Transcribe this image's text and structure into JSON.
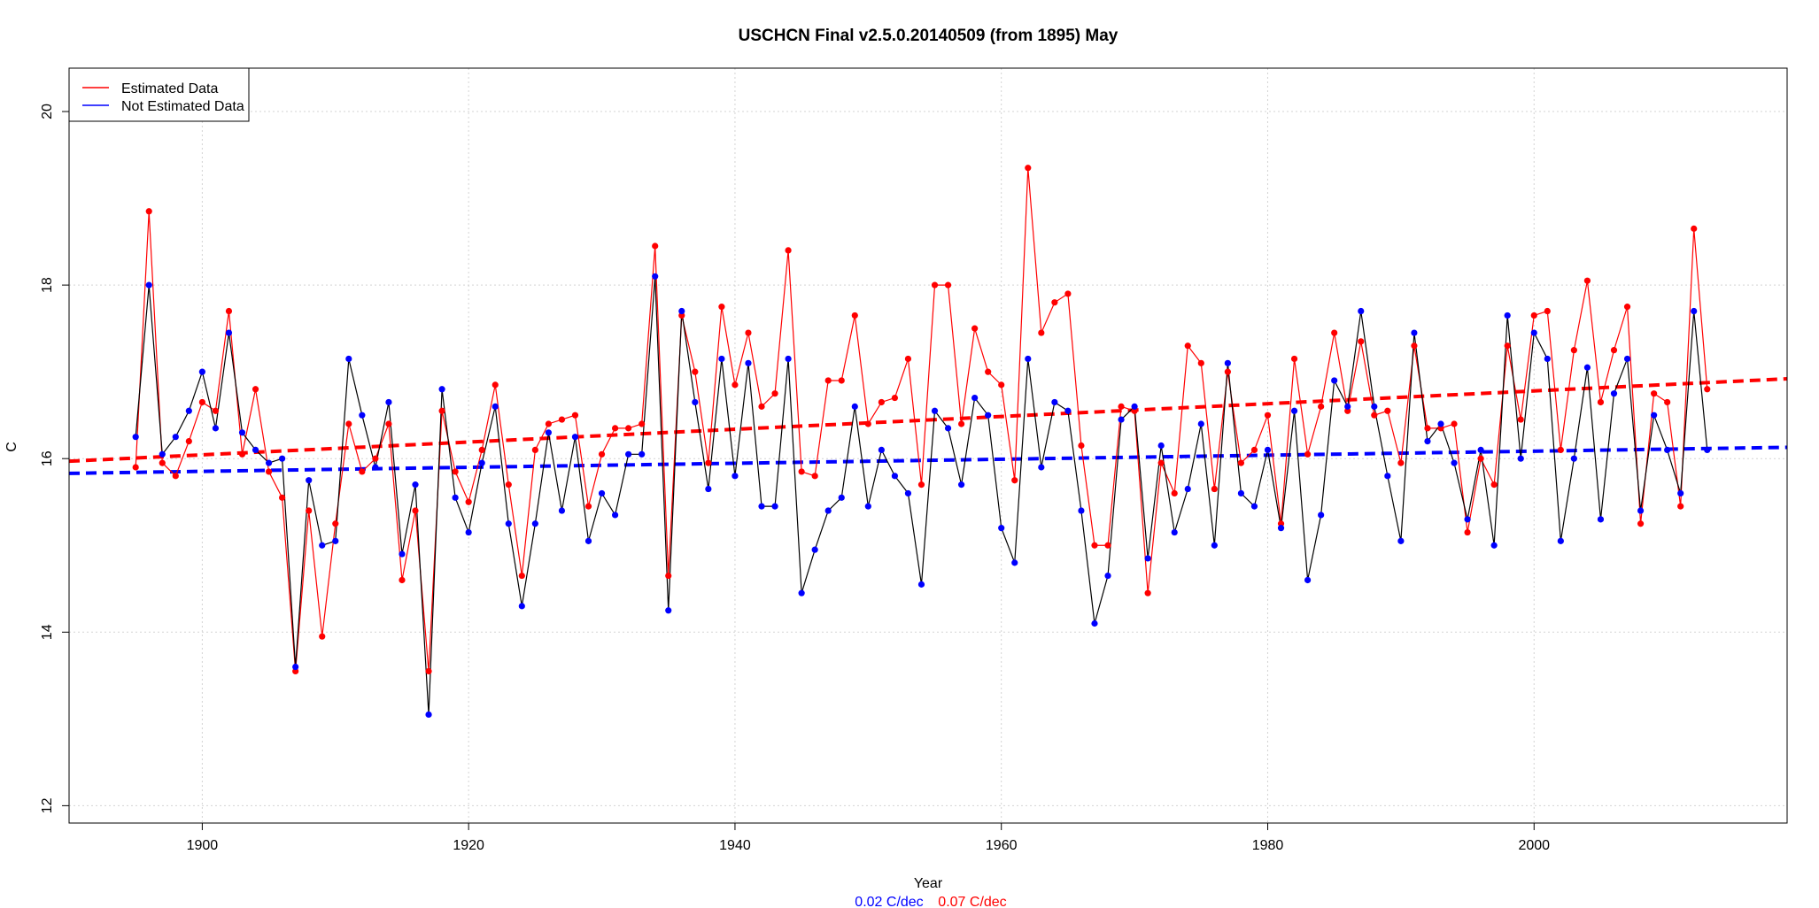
{
  "chart_data": {
    "type": "line",
    "title": "USCHCN Final v2.5.0.20140509 (from 1895) May",
    "xlabel": "Year",
    "ylabel": "C",
    "xlim": [
      1890,
      2019
    ],
    "ylim": [
      11.8,
      20.5
    ],
    "x_ticks": [
      1900,
      1920,
      1940,
      1960,
      1980,
      2000
    ],
    "y_ticks": [
      12,
      14,
      16,
      18,
      20
    ],
    "grid": true,
    "legend_position": "top-left",
    "colors": {
      "estimated": "#ff0000",
      "not_estimated": "#0000ff",
      "connector": "#000000"
    },
    "years": [
      1895,
      1896,
      1897,
      1898,
      1899,
      1900,
      1901,
      1902,
      1903,
      1904,
      1905,
      1906,
      1907,
      1908,
      1909,
      1910,
      1911,
      1912,
      1913,
      1914,
      1915,
      1916,
      1917,
      1918,
      1919,
      1920,
      1921,
      1922,
      1923,
      1924,
      1925,
      1926,
      1927,
      1928,
      1929,
      1930,
      1931,
      1932,
      1933,
      1934,
      1935,
      1936,
      1937,
      1938,
      1939,
      1940,
      1941,
      1942,
      1943,
      1944,
      1945,
      1946,
      1947,
      1948,
      1949,
      1950,
      1951,
      1952,
      1953,
      1954,
      1955,
      1956,
      1957,
      1958,
      1959,
      1960,
      1961,
      1962,
      1963,
      1964,
      1965,
      1966,
      1967,
      1968,
      1969,
      1970,
      1971,
      1972,
      1973,
      1974,
      1975,
      1976,
      1977,
      1978,
      1979,
      1980,
      1981,
      1982,
      1983,
      1984,
      1985,
      1986,
      1987,
      1988,
      1989,
      1990,
      1991,
      1992,
      1993,
      1994,
      1995,
      1996,
      1997,
      1998,
      1999,
      2000,
      2001,
      2002,
      2003,
      2004,
      2005,
      2006,
      2007,
      2008,
      2009,
      2010,
      2011,
      2012,
      2013
    ],
    "series": [
      {
        "name": "Estimated Data",
        "color": "#ff0000",
        "values": [
          15.9,
          18.85,
          15.95,
          15.8,
          16.2,
          16.65,
          16.55,
          17.7,
          16.05,
          16.8,
          15.85,
          15.55,
          13.55,
          15.4,
          13.95,
          15.25,
          16.4,
          15.85,
          16.0,
          16.4,
          14.6,
          15.4,
          13.55,
          16.55,
          15.85,
          15.5,
          16.1,
          16.85,
          15.7,
          14.65,
          16.1,
          16.4,
          16.45,
          16.5,
          15.45,
          16.05,
          16.35,
          16.35,
          16.4,
          18.45,
          14.65,
          17.65,
          17.0,
          15.95,
          17.75,
          16.85,
          17.45,
          16.6,
          16.75,
          18.4,
          15.85,
          15.8,
          16.9,
          16.9,
          17.65,
          16.4,
          16.65,
          16.7,
          17.15,
          15.7,
          18.0,
          18.0,
          16.4,
          17.5,
          17.0,
          16.85,
          15.75,
          19.35,
          17.45,
          17.8,
          17.9,
          16.15,
          15.0,
          15.0,
          16.6,
          16.55,
          14.45,
          15.95,
          15.6,
          17.3,
          17.1,
          15.65,
          17.0,
          15.95,
          16.1,
          16.5,
          15.25,
          17.15,
          16.05,
          16.6,
          17.45,
          16.55,
          17.35,
          16.5,
          16.55,
          15.95,
          17.3,
          16.35,
          16.35,
          16.4,
          15.15,
          16.0,
          15.7,
          17.3,
          16.45,
          17.65,
          17.7,
          16.1,
          17.25,
          18.05,
          16.65,
          17.25,
          17.75,
          15.25,
          16.75,
          16.65,
          15.45,
          18.65,
          16.8
        ]
      },
      {
        "name": "Not Estimated Data",
        "color": "#0000ff",
        "values": [
          16.25,
          18.0,
          16.05,
          16.25,
          16.55,
          17.0,
          16.35,
          17.45,
          16.3,
          16.1,
          15.95,
          16.0,
          13.6,
          15.75,
          15.0,
          15.05,
          17.15,
          16.5,
          15.9,
          16.65,
          14.9,
          15.7,
          13.05,
          16.8,
          15.55,
          15.15,
          15.95,
          16.6,
          15.25,
          14.3,
          15.25,
          16.3,
          15.4,
          16.25,
          15.05,
          15.6,
          15.35,
          16.05,
          16.05,
          18.1,
          14.25,
          17.7,
          16.65,
          15.65,
          17.15,
          15.8,
          17.1,
          15.45,
          15.45,
          17.15,
          14.45,
          14.95,
          15.4,
          15.55,
          16.6,
          15.45,
          16.1,
          15.8,
          15.6,
          14.55,
          16.55,
          16.35,
          15.7,
          16.7,
          16.5,
          15.2,
          14.8,
          17.15,
          15.9,
          16.65,
          16.55,
          15.4,
          14.1,
          14.65,
          16.45,
          16.6,
          14.85,
          16.15,
          15.15,
          15.65,
          16.4,
          15.0,
          17.1,
          15.6,
          15.45,
          16.1,
          15.2,
          16.55,
          14.6,
          15.35,
          16.9,
          16.6,
          17.7,
          16.6,
          15.8,
          15.05,
          17.45,
          16.2,
          16.4,
          15.95,
          15.3,
          16.1,
          15.0,
          17.65,
          16.0,
          17.45,
          17.15,
          15.05,
          16.0,
          17.05,
          15.3,
          16.75,
          17.15,
          15.4,
          16.5,
          16.1,
          15.6,
          17.7,
          16.1
        ]
      }
    ],
    "trends": [
      {
        "name": "Estimated trend",
        "color": "#ff0000",
        "x": [
          1890,
          2019
        ],
        "y": [
          15.97,
          16.92
        ]
      },
      {
        "name": "Not Estimated trend",
        "color": "#0000ff",
        "x": [
          1890,
          2019
        ],
        "y": [
          15.83,
          16.13
        ]
      }
    ],
    "trend_labels": [
      {
        "text": "0.02 C/dec",
        "color": "#0000ff"
      },
      {
        "text": "0.07 C/dec",
        "color": "#ff0000"
      }
    ]
  }
}
